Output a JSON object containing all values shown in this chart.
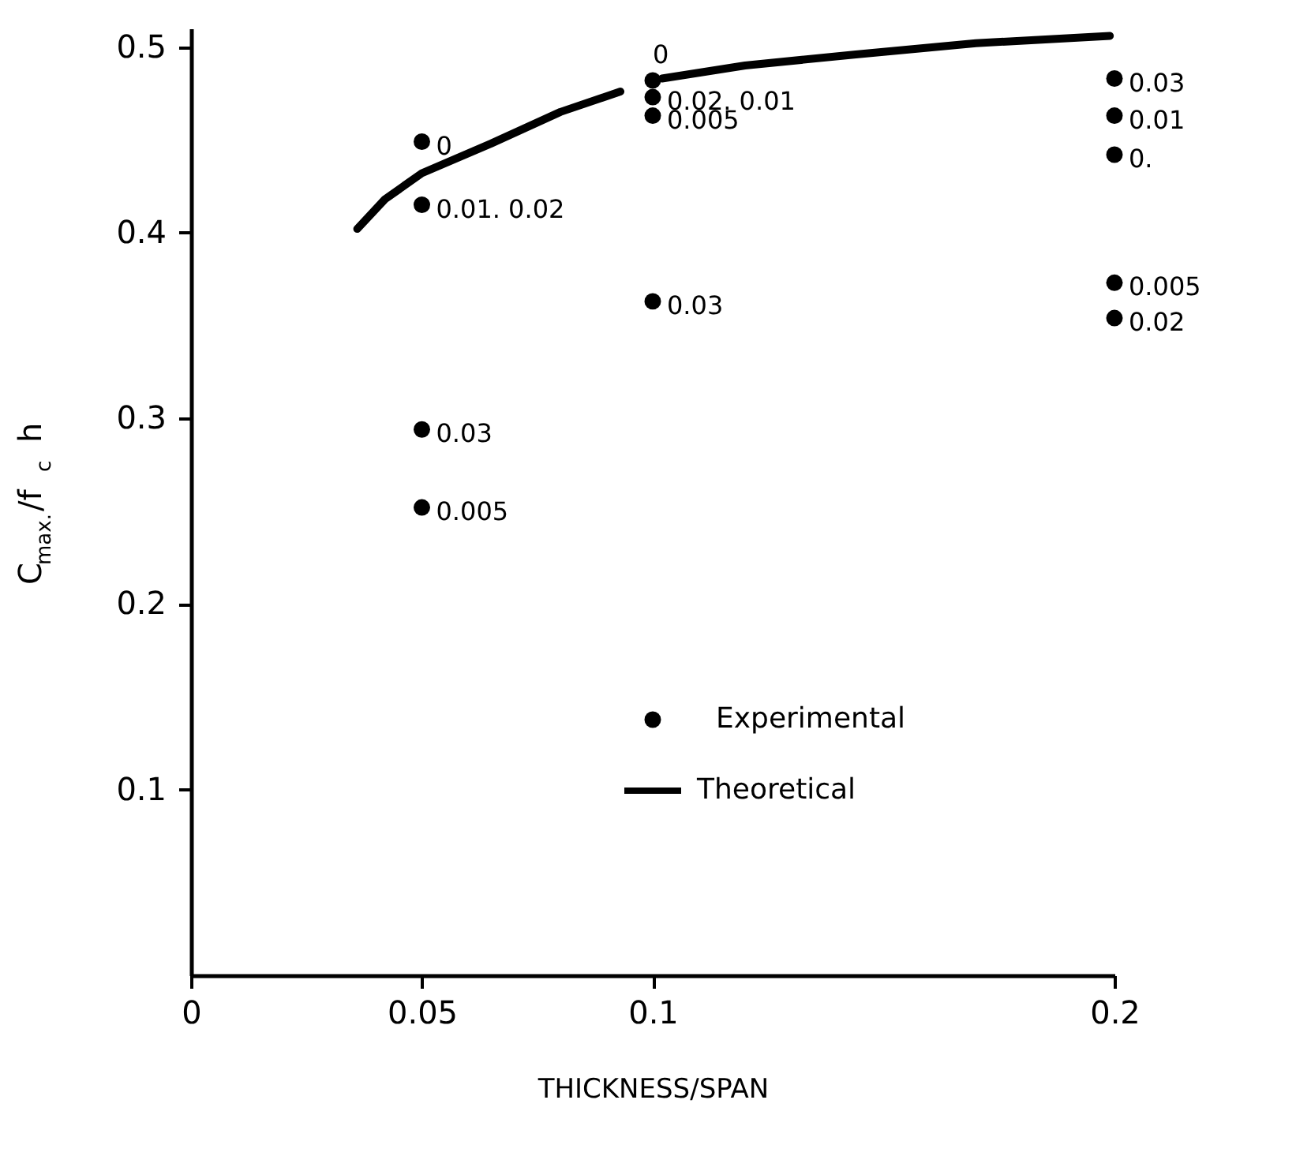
{
  "chart_data": {
    "type": "scatter",
    "xlabel": "THICKNESS/SPAN",
    "ylabel": "C$_{max.}$/f$_{c}$ h",
    "xlim": [
      0,
      0.2
    ],
    "xticks": [
      0,
      0.05,
      0.1,
      0.2
    ],
    "ylim": [
      0,
      0.51
    ],
    "yticks": [
      0.1,
      0.2,
      0.3,
      0.4,
      0.5
    ],
    "grid": false,
    "legend": "bottom right",
    "marker": "circle",
    "series": [
      {
        "name": "Experimental",
        "type": "scatter",
        "color": "#000000",
        "x": [
          0.05,
          0.05,
          0.05,
          0.05,
          0.1,
          0.1,
          0.1,
          0.1,
          0.2,
          0.2,
          0.2,
          0.2,
          0.2
        ],
        "values": [
          0.449,
          0.415,
          0.294,
          0.252,
          0.482,
          0.473,
          0.463,
          0.363,
          0.483,
          0.463,
          0.442,
          0.373,
          0.354
        ]
      },
      {
        "name": "Theoretical",
        "type": "line",
        "color": "#000000",
        "marker": "none",
        "x": [
          0.036,
          0.042,
          0.05,
          0.065,
          0.08,
          0.093,
          0.097,
          0.102,
          0.12,
          0.144,
          0.17,
          0.199
        ],
        "values": [
          0.402,
          0.418,
          0.432,
          0.448,
          0.465,
          0.476,
          null,
          0.483,
          0.49,
          0.496,
          0.502,
          0.506
        ]
      }
    ],
    "annotations": [
      {
        "text": "0",
        "x": 0.05,
        "y": 0.449
      },
      {
        "text": "0.01. 0.02",
        "x": 0.05,
        "y": 0.415
      },
      {
        "text": "0.03",
        "x": 0.05,
        "y": 0.294
      },
      {
        "text": "0.005",
        "x": 0.05,
        "y": 0.252
      },
      {
        "text": "0",
        "x": 0.1,
        "y": 0.482
      },
      {
        "text": "0.02. 0.01",
        "x": 0.1,
        "y": 0.473
      },
      {
        "text": "0.005",
        "x": 0.1,
        "y": 0.463
      },
      {
        "text": "0.03",
        "x": 0.1,
        "y": 0.363
      },
      {
        "text": "0.03",
        "x": 0.2,
        "y": 0.483
      },
      {
        "text": "0.01",
        "x": 0.2,
        "y": 0.463
      },
      {
        "text": "0.",
        "x": 0.2,
        "y": 0.442
      },
      {
        "text": "0.005",
        "x": 0.2,
        "y": 0.373
      },
      {
        "text": "0.02",
        "x": 0.2,
        "y": 0.354
      }
    ]
  }
}
